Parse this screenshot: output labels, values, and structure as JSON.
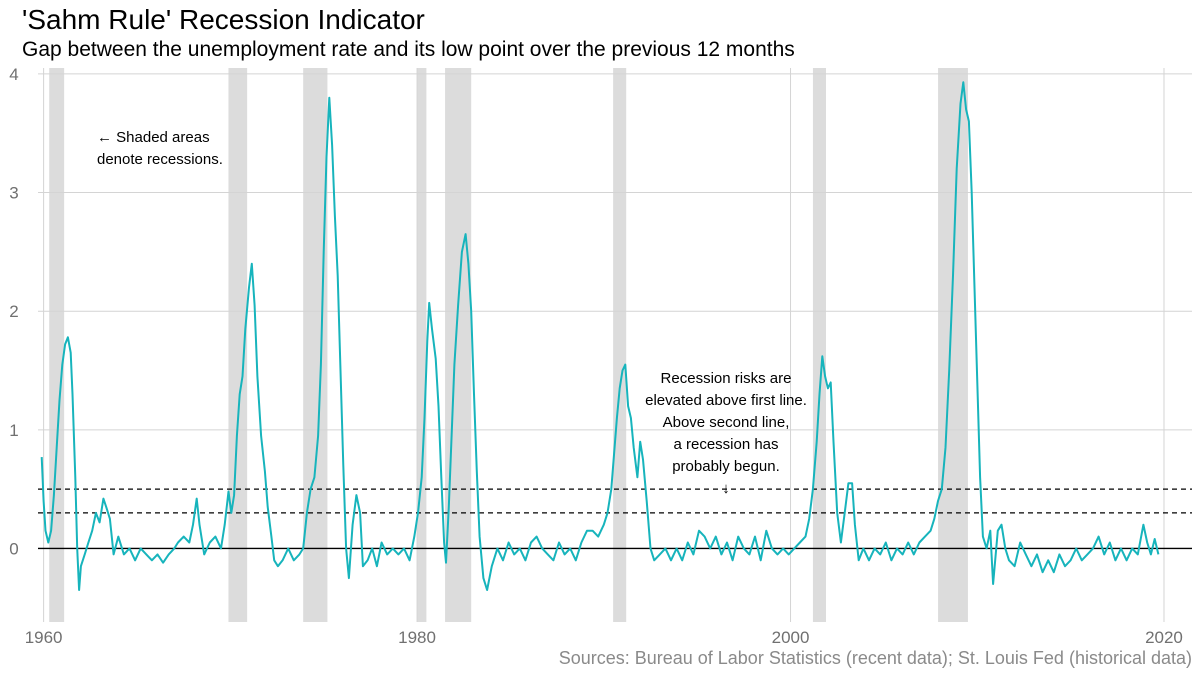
{
  "header": {
    "title": "'Sahm Rule' Recession Indicator",
    "subtitle": "Gap between the unemployment rate and its low point over the previous 12 months"
  },
  "footer": {
    "source": "Sources: Bureau of Labor Statistics (recent data); St. Louis Fed (historical data)"
  },
  "colors": {
    "line": "#17b4bc",
    "recession": "#dcdcdc",
    "grid": "#d4d4d4",
    "zero_line": "#000000",
    "threshold_line": "#000000",
    "tick_text": "#707070"
  },
  "chart_data": {
    "type": "line",
    "title": "'Sahm Rule' Recession Indicator",
    "subtitle": "Gap between the unemployment rate and its low point over the previous 12 months",
    "xlabel": "",
    "ylabel": "",
    "xlim": [
      1959.7,
      2021.5
    ],
    "ylim": [
      -0.62,
      4.05
    ],
    "x_ticks": [
      1960,
      1980,
      2000,
      2020
    ],
    "x_tick_labels": [
      "1960",
      "1980",
      "2000",
      "2020"
    ],
    "y_ticks": [
      0,
      1,
      2,
      3,
      4
    ],
    "y_tick_labels": [
      "0",
      "1",
      "2",
      "3",
      "4"
    ],
    "grid": true,
    "legend": "none",
    "reference_lines": [
      {
        "y": 0,
        "style": "solid"
      },
      {
        "y": 0.3,
        "style": "dashed"
      },
      {
        "y": 0.5,
        "style": "dashed"
      }
    ],
    "recessions": [
      [
        1960.3,
        1961.1
      ],
      [
        1969.9,
        1970.9
      ],
      [
        1973.9,
        1975.2
      ],
      [
        1980.0,
        1980.5
      ],
      [
        1981.5,
        1982.9
      ],
      [
        1990.5,
        1991.2
      ],
      [
        2001.2,
        2001.9
      ],
      [
        2007.9,
        2009.5
      ]
    ],
    "annotations": {
      "recession_note": [
        "← Shaded areas",
        "denote recessions."
      ],
      "threshold_note": [
        "Recession risks are",
        "elevated above first line.",
        "Above second line,",
        "a recession has",
        "probably begun.",
        "↓"
      ]
    },
    "series": [
      {
        "values": [
          [
            1959.9,
            0.77
          ],
          [
            1960.0,
            0.4
          ],
          [
            1960.1,
            0.15
          ],
          [
            1960.25,
            0.05
          ],
          [
            1960.4,
            0.15
          ],
          [
            1960.55,
            0.45
          ],
          [
            1960.7,
            0.85
          ],
          [
            1960.85,
            1.25
          ],
          [
            1961.0,
            1.55
          ],
          [
            1961.15,
            1.72
          ],
          [
            1961.3,
            1.78
          ],
          [
            1961.45,
            1.65
          ],
          [
            1961.55,
            1.3
          ],
          [
            1961.7,
            0.6
          ],
          [
            1961.8,
            0.0
          ],
          [
            1961.9,
            -0.35
          ],
          [
            1962.0,
            -0.15
          ],
          [
            1962.2,
            -0.05
          ],
          [
            1962.4,
            0.05
          ],
          [
            1962.6,
            0.15
          ],
          [
            1962.8,
            0.3
          ],
          [
            1963.0,
            0.22
          ],
          [
            1963.2,
            0.42
          ],
          [
            1963.35,
            0.35
          ],
          [
            1963.55,
            0.25
          ],
          [
            1963.75,
            -0.05
          ],
          [
            1964.0,
            0.1
          ],
          [
            1964.3,
            -0.05
          ],
          [
            1964.6,
            0.0
          ],
          [
            1964.9,
            -0.1
          ],
          [
            1965.2,
            0.0
          ],
          [
            1965.5,
            -0.05
          ],
          [
            1965.8,
            -0.1
          ],
          [
            1966.1,
            -0.05
          ],
          [
            1966.4,
            -0.12
          ],
          [
            1966.7,
            -0.05
          ],
          [
            1967.0,
            0.0
          ],
          [
            1967.2,
            0.05
          ],
          [
            1967.5,
            0.1
          ],
          [
            1967.8,
            0.05
          ],
          [
            1968.0,
            0.2
          ],
          [
            1968.2,
            0.42
          ],
          [
            1968.35,
            0.2
          ],
          [
            1968.6,
            -0.05
          ],
          [
            1968.9,
            0.05
          ],
          [
            1969.2,
            0.1
          ],
          [
            1969.5,
            0.0
          ],
          [
            1969.7,
            0.2
          ],
          [
            1969.9,
            0.48
          ],
          [
            1970.05,
            0.3
          ],
          [
            1970.2,
            0.45
          ],
          [
            1970.35,
            0.95
          ],
          [
            1970.5,
            1.3
          ],
          [
            1970.65,
            1.45
          ],
          [
            1970.8,
            1.85
          ],
          [
            1971.0,
            2.2
          ],
          [
            1971.15,
            2.4
          ],
          [
            1971.3,
            2.05
          ],
          [
            1971.45,
            1.45
          ],
          [
            1971.65,
            0.95
          ],
          [
            1971.85,
            0.65
          ],
          [
            1972.0,
            0.35
          ],
          [
            1972.2,
            0.1
          ],
          [
            1972.35,
            -0.1
          ],
          [
            1972.55,
            -0.15
          ],
          [
            1972.8,
            -0.1
          ],
          [
            1973.1,
            0.0
          ],
          [
            1973.4,
            -0.1
          ],
          [
            1973.7,
            -0.05
          ],
          [
            1973.9,
            0.0
          ],
          [
            1974.1,
            0.3
          ],
          [
            1974.3,
            0.5
          ],
          [
            1974.5,
            0.6
          ],
          [
            1974.7,
            0.95
          ],
          [
            1974.85,
            1.55
          ],
          [
            1975.0,
            2.5
          ],
          [
            1975.15,
            3.3
          ],
          [
            1975.3,
            3.8
          ],
          [
            1975.45,
            3.4
          ],
          [
            1975.6,
            2.8
          ],
          [
            1975.75,
            2.3
          ],
          [
            1975.9,
            1.5
          ],
          [
            1976.05,
            0.7
          ],
          [
            1976.2,
            0.0
          ],
          [
            1976.35,
            -0.25
          ],
          [
            1976.55,
            0.2
          ],
          [
            1976.75,
            0.45
          ],
          [
            1976.95,
            0.3
          ],
          [
            1977.1,
            -0.15
          ],
          [
            1977.35,
            -0.1
          ],
          [
            1977.6,
            0.0
          ],
          [
            1977.85,
            -0.15
          ],
          [
            1978.1,
            0.05
          ],
          [
            1978.4,
            -0.05
          ],
          [
            1978.7,
            0.0
          ],
          [
            1979.0,
            -0.05
          ],
          [
            1979.3,
            0.0
          ],
          [
            1979.6,
            -0.1
          ],
          [
            1979.85,
            0.1
          ],
          [
            1980.05,
            0.3
          ],
          [
            1980.25,
            0.6
          ],
          [
            1980.4,
            1.1
          ],
          [
            1980.55,
            1.75
          ],
          [
            1980.65,
            2.07
          ],
          [
            1980.8,
            1.85
          ],
          [
            1981.0,
            1.6
          ],
          [
            1981.15,
            1.2
          ],
          [
            1981.3,
            0.6
          ],
          [
            1981.45,
            0.05
          ],
          [
            1981.55,
            -0.12
          ],
          [
            1981.7,
            0.35
          ],
          [
            1981.85,
            0.95
          ],
          [
            1982.0,
            1.55
          ],
          [
            1982.2,
            2.05
          ],
          [
            1982.4,
            2.5
          ],
          [
            1982.6,
            2.65
          ],
          [
            1982.75,
            2.4
          ],
          [
            1982.9,
            2.0
          ],
          [
            1983.05,
            1.3
          ],
          [
            1983.2,
            0.65
          ],
          [
            1983.35,
            0.1
          ],
          [
            1983.55,
            -0.25
          ],
          [
            1983.75,
            -0.35
          ],
          [
            1984.0,
            -0.15
          ],
          [
            1984.3,
            0.0
          ],
          [
            1984.6,
            -0.1
          ],
          [
            1984.9,
            0.05
          ],
          [
            1985.2,
            -0.05
          ],
          [
            1985.5,
            0.0
          ],
          [
            1985.8,
            -0.1
          ],
          [
            1986.1,
            0.05
          ],
          [
            1986.4,
            0.1
          ],
          [
            1986.7,
            0.0
          ],
          [
            1987.0,
            -0.05
          ],
          [
            1987.3,
            -0.1
          ],
          [
            1987.6,
            0.05
          ],
          [
            1987.9,
            -0.05
          ],
          [
            1988.2,
            0.0
          ],
          [
            1988.5,
            -0.1
          ],
          [
            1988.8,
            0.05
          ],
          [
            1989.1,
            0.15
          ],
          [
            1989.4,
            0.15
          ],
          [
            1989.7,
            0.1
          ],
          [
            1990.0,
            0.2
          ],
          [
            1990.2,
            0.3
          ],
          [
            1990.4,
            0.5
          ],
          [
            1990.55,
            0.8
          ],
          [
            1990.7,
            1.1
          ],
          [
            1990.85,
            1.35
          ],
          [
            1991.0,
            1.5
          ],
          [
            1991.15,
            1.55
          ],
          [
            1991.3,
            1.2
          ],
          [
            1991.45,
            1.1
          ],
          [
            1991.6,
            0.85
          ],
          [
            1991.8,
            0.6
          ],
          [
            1991.95,
            0.9
          ],
          [
            1992.1,
            0.75
          ],
          [
            1992.3,
            0.4
          ],
          [
            1992.5,
            0.0
          ],
          [
            1992.7,
            -0.1
          ],
          [
            1993.0,
            -0.05
          ],
          [
            1993.3,
            0.0
          ],
          [
            1993.6,
            -0.1
          ],
          [
            1993.9,
            0.0
          ],
          [
            1994.2,
            -0.1
          ],
          [
            1994.5,
            0.05
          ],
          [
            1994.8,
            -0.05
          ],
          [
            1995.1,
            0.15
          ],
          [
            1995.4,
            0.1
          ],
          [
            1995.7,
            0.0
          ],
          [
            1996.0,
            0.1
          ],
          [
            1996.3,
            -0.05
          ],
          [
            1996.6,
            0.05
          ],
          [
            1996.9,
            -0.1
          ],
          [
            1997.2,
            0.1
          ],
          [
            1997.5,
            0.0
          ],
          [
            1997.8,
            -0.05
          ],
          [
            1998.1,
            0.1
          ],
          [
            1998.4,
            -0.1
          ],
          [
            1998.7,
            0.15
          ],
          [
            1999.0,
            0.0
          ],
          [
            1999.3,
            -0.05
          ],
          [
            1999.6,
            0.0
          ],
          [
            1999.9,
            -0.05
          ],
          [
            2000.2,
            0.0
          ],
          [
            2000.5,
            0.05
          ],
          [
            2000.8,
            0.1
          ],
          [
            2001.0,
            0.25
          ],
          [
            2001.2,
            0.5
          ],
          [
            2001.4,
            0.9
          ],
          [
            2001.55,
            1.3
          ],
          [
            2001.7,
            1.62
          ],
          [
            2001.85,
            1.45
          ],
          [
            2002.0,
            1.35
          ],
          [
            2002.15,
            1.4
          ],
          [
            2002.3,
            0.9
          ],
          [
            2002.5,
            0.3
          ],
          [
            2002.7,
            0.05
          ],
          [
            2002.9,
            0.3
          ],
          [
            2003.1,
            0.55
          ],
          [
            2003.3,
            0.55
          ],
          [
            2003.45,
            0.2
          ],
          [
            2003.65,
            -0.1
          ],
          [
            2003.9,
            0.0
          ],
          [
            2004.2,
            -0.1
          ],
          [
            2004.5,
            0.0
          ],
          [
            2004.8,
            -0.05
          ],
          [
            2005.1,
            0.05
          ],
          [
            2005.4,
            -0.1
          ],
          [
            2005.7,
            0.0
          ],
          [
            2006.0,
            -0.05
          ],
          [
            2006.3,
            0.05
          ],
          [
            2006.6,
            -0.05
          ],
          [
            2006.9,
            0.05
          ],
          [
            2007.2,
            0.1
          ],
          [
            2007.5,
            0.15
          ],
          [
            2007.7,
            0.25
          ],
          [
            2007.9,
            0.4
          ],
          [
            2008.1,
            0.5
          ],
          [
            2008.3,
            0.85
          ],
          [
            2008.5,
            1.5
          ],
          [
            2008.7,
            2.3
          ],
          [
            2008.9,
            3.2
          ],
          [
            2009.1,
            3.75
          ],
          [
            2009.25,
            3.93
          ],
          [
            2009.4,
            3.7
          ],
          [
            2009.55,
            3.6
          ],
          [
            2009.7,
            3.0
          ],
          [
            2009.85,
            2.2
          ],
          [
            2010.0,
            1.4
          ],
          [
            2010.15,
            0.6
          ],
          [
            2010.3,
            0.1
          ],
          [
            2010.5,
            0.0
          ],
          [
            2010.7,
            0.15
          ],
          [
            2010.85,
            -0.3
          ],
          [
            2011.1,
            0.15
          ],
          [
            2011.3,
            0.2
          ],
          [
            2011.5,
            0.0
          ],
          [
            2011.7,
            -0.1
          ],
          [
            2012.0,
            -0.15
          ],
          [
            2012.3,
            0.05
          ],
          [
            2012.6,
            -0.05
          ],
          [
            2012.9,
            -0.15
          ],
          [
            2013.2,
            -0.05
          ],
          [
            2013.5,
            -0.2
          ],
          [
            2013.8,
            -0.1
          ],
          [
            2014.1,
            -0.2
          ],
          [
            2014.4,
            -0.05
          ],
          [
            2014.7,
            -0.15
          ],
          [
            2015.0,
            -0.1
          ],
          [
            2015.3,
            0.0
          ],
          [
            2015.6,
            -0.1
          ],
          [
            2015.9,
            -0.05
          ],
          [
            2016.2,
            0.0
          ],
          [
            2016.5,
            0.1
          ],
          [
            2016.8,
            -0.05
          ],
          [
            2017.1,
            0.05
          ],
          [
            2017.4,
            -0.1
          ],
          [
            2017.7,
            0.0
          ],
          [
            2018.0,
            -0.1
          ],
          [
            2018.3,
            0.0
          ],
          [
            2018.6,
            -0.05
          ],
          [
            2018.9,
            0.2
          ],
          [
            2019.1,
            0.05
          ],
          [
            2019.3,
            -0.05
          ],
          [
            2019.5,
            0.08
          ],
          [
            2019.7,
            -0.05
          ]
        ]
      }
    ]
  }
}
